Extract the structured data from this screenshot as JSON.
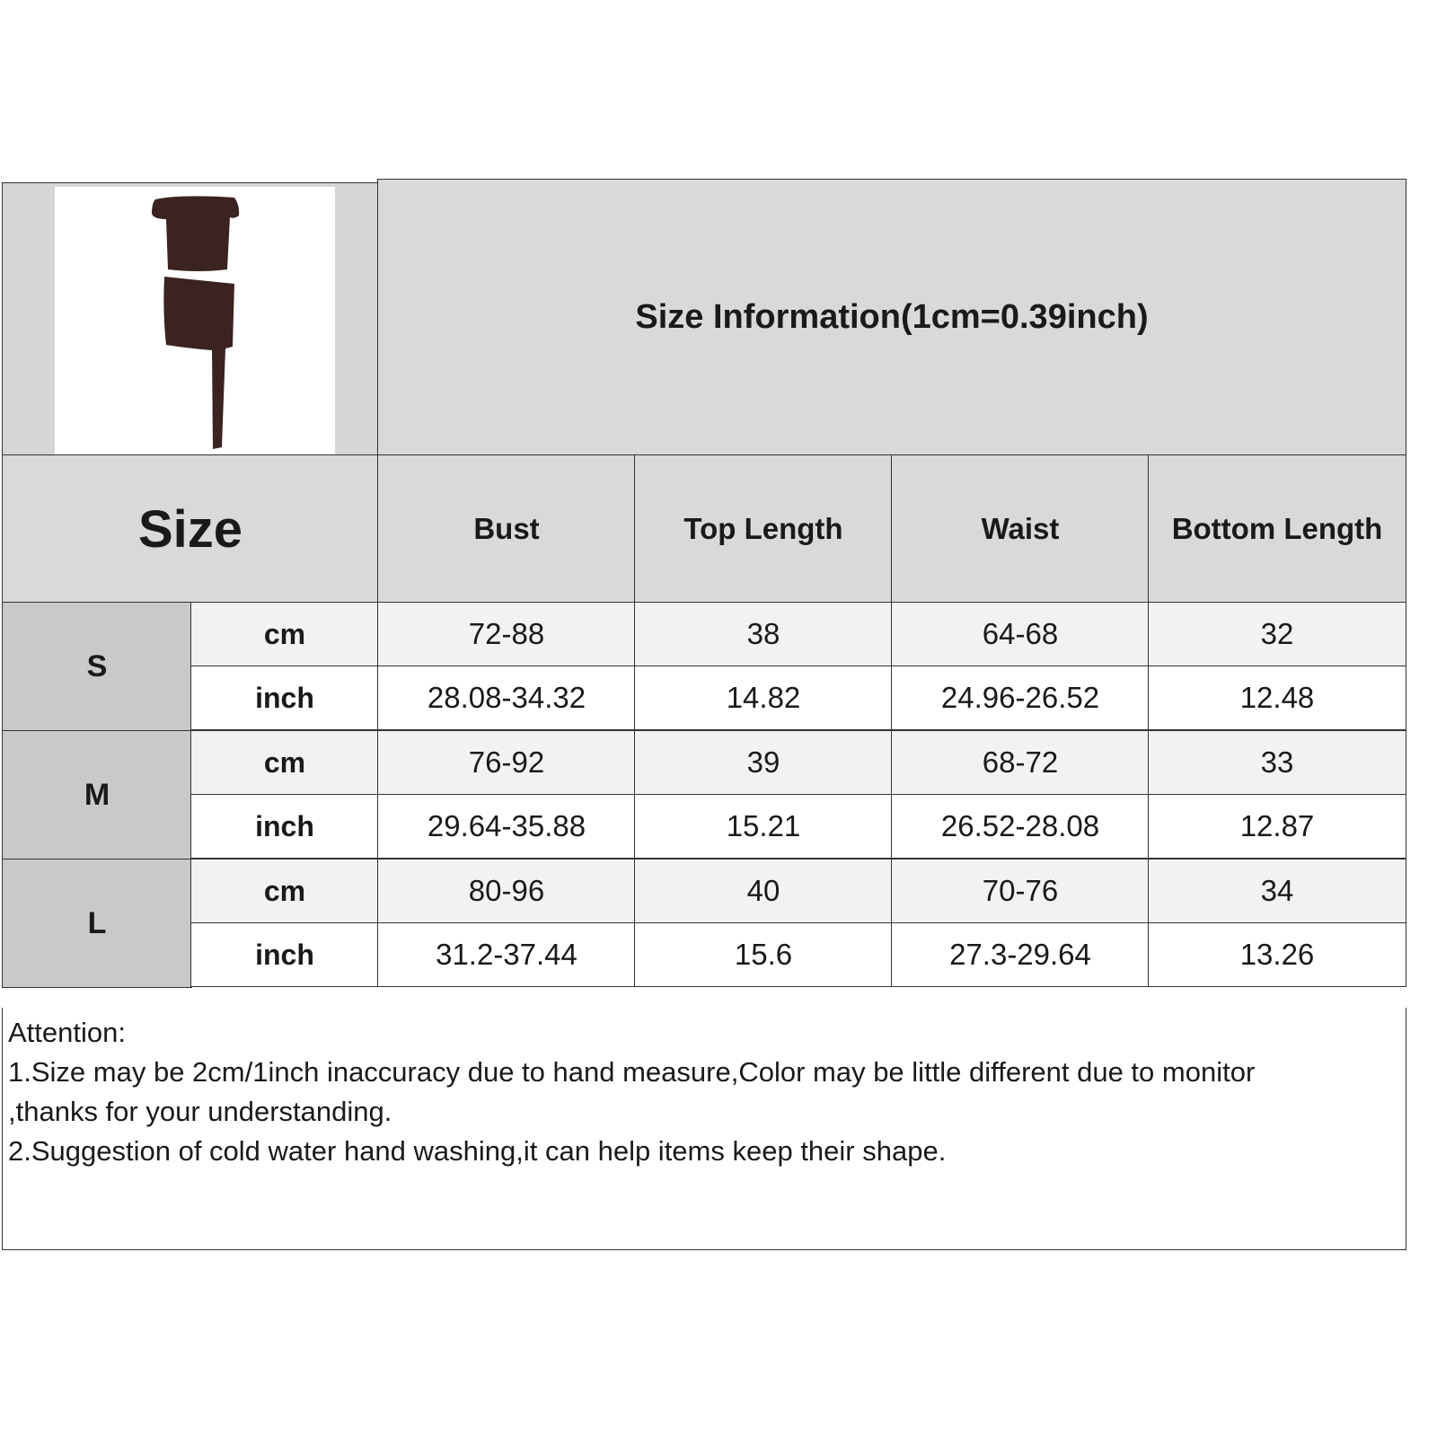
{
  "title": "Size Information(1cm=0.39inch)",
  "header": {
    "size_label": "Size",
    "columns": [
      "Bust",
      "Top Length",
      "Waist",
      "Bottom Length"
    ]
  },
  "rows": [
    {
      "size": "S",
      "cm": {
        "unit": "cm",
        "values": [
          "72-88",
          "38",
          "64-68",
          "32"
        ]
      },
      "inch": {
        "unit": "inch",
        "values": [
          "28.08-34.32",
          "14.82",
          "24.96-26.52",
          "12.48"
        ]
      }
    },
    {
      "size": "M",
      "cm": {
        "unit": "cm",
        "values": [
          "76-92",
          "39",
          "68-72",
          "33"
        ]
      },
      "inch": {
        "unit": "inch",
        "values": [
          "29.64-35.88",
          "15.21",
          "26.52-28.08",
          "12.87"
        ]
      }
    },
    {
      "size": "L",
      "cm": {
        "unit": "cm",
        "values": [
          "80-96",
          "40",
          "70-76",
          "34"
        ]
      },
      "inch": {
        "unit": "inch",
        "values": [
          "31.2-37.44",
          "15.6",
          "27.3-29.64",
          "13.26"
        ]
      }
    }
  ],
  "notes": {
    "heading": "Attention:",
    "lines": [
      "1.Size may be 2cm/1inch inaccuracy due to hand measure,Color may be little different due to monitor",
      ",thanks for your understanding.",
      "2.Suggestion of cold water hand washing,it can help items keep their shape."
    ]
  },
  "colors": {
    "header_bg": "#d9d9d9",
    "size_bg": "#c9c9c9",
    "cm_row_bg": "#f2f2f2",
    "garment": "#3a2320"
  }
}
